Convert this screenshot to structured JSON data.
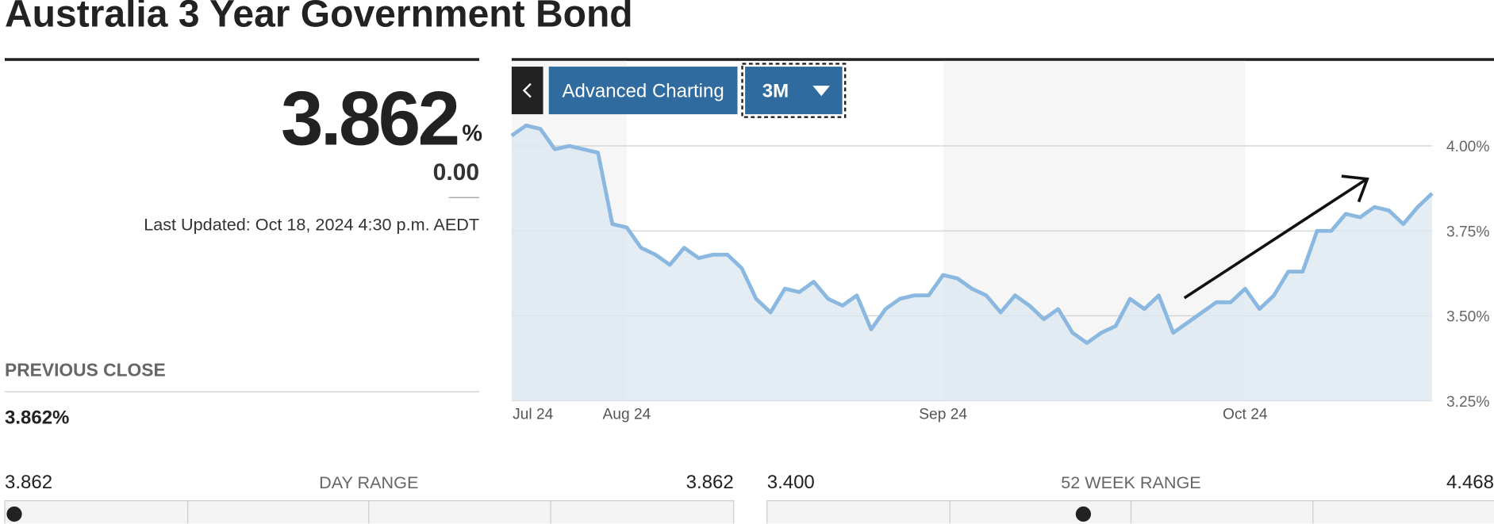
{
  "header": {
    "title": "Australia 3 Year Government Bond"
  },
  "quote": {
    "price": "3.862",
    "unit": "%",
    "change": "0.00",
    "last_updated": "Last Updated: Oct 18, 2024 4:30 p.m. AEDT"
  },
  "previous_close": {
    "label": "PREVIOUS CLOSE",
    "value": "3.862%"
  },
  "controls": {
    "advanced": "Advanced Charting",
    "range": "3M"
  },
  "chart_data": {
    "type": "line",
    "color": "#8bb8e0",
    "area_color": "#dfe9f1",
    "categories": [
      "Jul 24",
      null,
      null,
      null,
      null,
      null,
      null,
      null,
      "Aug 24",
      null,
      null,
      null,
      null,
      null,
      null,
      null,
      null,
      null,
      null,
      null,
      null,
      null,
      null,
      null,
      null,
      null,
      null,
      null,
      null,
      null,
      "Sep 24",
      null,
      null,
      null,
      null,
      null,
      null,
      null,
      null,
      null,
      null,
      null,
      null,
      null,
      null,
      null,
      null,
      null,
      null,
      null,
      null,
      "Oct 24",
      null,
      null,
      null,
      null,
      null,
      null,
      null,
      null,
      null,
      null,
      null,
      null,
      null
    ],
    "values": [
      4.03,
      4.06,
      4.05,
      3.99,
      4.0,
      3.99,
      3.98,
      3.77,
      3.76,
      3.7,
      3.68,
      3.65,
      3.7,
      3.67,
      3.68,
      3.68,
      3.64,
      3.55,
      3.51,
      3.58,
      3.57,
      3.6,
      3.55,
      3.53,
      3.56,
      3.46,
      3.52,
      3.55,
      3.56,
      3.56,
      3.62,
      3.61,
      3.58,
      3.56,
      3.51,
      3.56,
      3.53,
      3.49,
      3.52,
      3.45,
      3.42,
      3.45,
      3.47,
      3.55,
      3.52,
      3.56,
      3.45,
      3.48,
      3.51,
      3.54,
      3.54,
      3.58,
      3.52,
      3.56,
      3.63,
      3.63,
      3.75,
      3.75,
      3.8,
      3.79,
      3.82,
      3.81,
      3.77,
      3.82,
      3.86
    ],
    "ylim": [
      3.25,
      4.25
    ],
    "yticks": [
      {
        "value": 4.0,
        "label": "4.00%"
      },
      {
        "value": 3.75,
        "label": "3.75%"
      },
      {
        "value": 3.5,
        "label": "3.50%"
      },
      {
        "value": 3.25,
        "label": "3.25%"
      }
    ],
    "grid": true
  },
  "day_range": {
    "label": "DAY RANGE",
    "low": "3.862",
    "high": "3.862"
  },
  "week52_range": {
    "label": "52 WEEK RANGE",
    "low": "3.400",
    "high": "4.468"
  }
}
